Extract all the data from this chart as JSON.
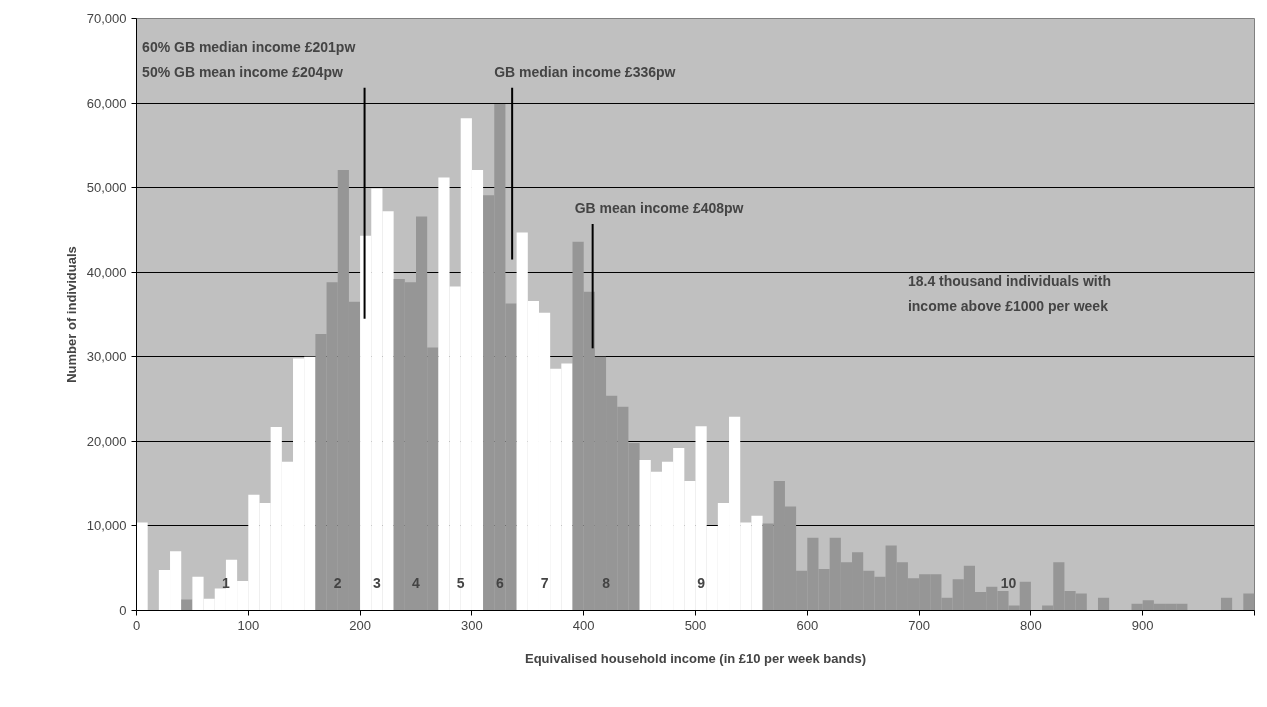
{
  "chart_data": {
    "type": "histogram",
    "xlabel": "Equivalised household income (in £10 per week bands)",
    "ylabel": "Number of individuals",
    "bins": [
      0,
      10,
      20,
      30,
      40,
      50,
      60,
      70,
      80,
      90,
      100,
      110,
      120,
      130,
      140,
      150,
      160,
      170,
      180,
      190,
      200,
      210,
      220,
      230,
      240,
      250,
      260,
      270,
      280,
      290,
      300,
      310,
      320,
      330,
      340,
      350,
      360,
      370,
      380,
      390,
      400,
      410,
      420,
      430,
      440,
      450,
      460,
      470,
      480,
      490,
      500,
      510,
      520,
      530,
      540,
      550,
      560,
      570,
      580,
      590,
      600,
      610,
      620,
      630,
      640,
      650,
      660,
      670,
      680,
      690,
      700,
      710,
      720,
      730,
      740,
      750,
      760,
      770,
      780,
      790,
      800,
      810,
      820,
      830,
      840,
      850,
      860,
      870,
      880,
      890,
      900,
      910,
      920,
      930,
      940,
      950,
      960,
      970,
      980,
      990,
      1000
    ],
    "values": [
      10400,
      0,
      4800,
      7000,
      1300,
      4000,
      1400,
      2600,
      6000,
      3500,
      13700,
      12700,
      21700,
      17600,
      29800,
      30000,
      32700,
      38800,
      52100,
      36500,
      44300,
      49900,
      47200,
      39200,
      38800,
      46600,
      31100,
      51200,
      38300,
      58200,
      52100,
      49100,
      59900,
      36300,
      44700,
      36600,
      35200,
      28600,
      29200,
      43600,
      37700,
      30000,
      25400,
      24100,
      19800,
      17800,
      16400,
      17600,
      19200,
      15300,
      21800,
      10000,
      12700,
      22900,
      10400,
      11200,
      10300,
      15300,
      12300,
      4700,
      8600,
      4900,
      8600,
      5700,
      6900,
      4700,
      4000,
      7700,
      5700,
      3800,
      4300,
      4300,
      1500,
      3700,
      5300,
      2200,
      2800,
      2300,
      600,
      3400,
      0,
      600,
      5700,
      2300,
      2000,
      0,
      1500,
      0,
      0,
      800,
      1200,
      800,
      800,
      800,
      0,
      0,
      0,
      1500,
      0,
      2000
    ],
    "colors": [
      "#ffffff",
      "#ffffff",
      "#ffffff",
      "#ffffff",
      "#969696",
      "#ffffff",
      "#ffffff",
      "#ffffff",
      "#ffffff",
      "#ffffff",
      "#ffffff",
      "#ffffff",
      "#ffffff",
      "#ffffff",
      "#ffffff",
      "#ffffff",
      "#969696",
      "#969696",
      "#969696",
      "#969696",
      "#ffffff",
      "#ffffff",
      "#ffffff",
      "#969696",
      "#969696",
      "#969696",
      "#969696",
      "#ffffff",
      "#ffffff",
      "#ffffff",
      "#ffffff",
      "#969696",
      "#969696",
      "#969696",
      "#ffffff",
      "#ffffff",
      "#ffffff",
      "#ffffff",
      "#ffffff",
      "#969696",
      "#969696",
      "#969696",
      "#969696",
      "#969696",
      "#969696",
      "#ffffff",
      "#ffffff",
      "#ffffff",
      "#ffffff",
      "#ffffff",
      "#ffffff",
      "#ffffff",
      "#ffffff",
      "#ffffff",
      "#ffffff",
      "#ffffff",
      "#969696",
      "#969696",
      "#969696",
      "#969696",
      "#969696",
      "#969696",
      "#969696",
      "#969696",
      "#969696",
      "#969696",
      "#969696",
      "#969696",
      "#969696",
      "#969696",
      "#969696",
      "#969696",
      "#969696",
      "#969696",
      "#969696",
      "#969696",
      "#969696",
      "#969696",
      "#969696",
      "#969696",
      "#969696",
      "#969696",
      "#969696",
      "#969696",
      "#969696",
      "#969696",
      "#969696",
      "#969696",
      "#969696",
      "#969696",
      "#969696",
      "#969696",
      "#969696",
      "#969696",
      "#969696",
      "#969696",
      "#969696",
      "#969696",
      "#969696",
      "#969696"
    ],
    "xlim": [
      0,
      1000
    ],
    "ylim": [
      0,
      70000
    ],
    "xticks": [
      0,
      100,
      200,
      300,
      400,
      500,
      600,
      700,
      800,
      900,
      {
        "value": 1000,
        "label": null
      }
    ],
    "yticks": [
      {
        "value": 0,
        "label": "0"
      },
      {
        "value": 10000,
        "label": "10,000"
      },
      {
        "value": 20000,
        "label": "20,000"
      },
      {
        "value": 30000,
        "label": "30,000"
      },
      {
        "value": 40000,
        "label": "40,000"
      },
      {
        "value": 50000,
        "label": "50,000"
      },
      {
        "value": 60000,
        "label": "60,000"
      },
      {
        "value": 70000,
        "label": "70,000"
      }
    ],
    "grid": "y",
    "annotations": [
      {
        "text": "60% GB median income £201pw\n50% GB mean income £204pw",
        "x": 204,
        "y": 34500
      },
      {
        "text": "GB median income £336pw",
        "x": 336,
        "y": 41500
      },
      {
        "text": "GB mean income £408pw",
        "x": 408,
        "y": 31000
      },
      "18.4 thousand individuals with\nincome above £1000 per week",
      "1",
      "2",
      "3",
      "4",
      "5",
      "6",
      "7",
      "8",
      "9",
      "10"
    ]
  }
}
